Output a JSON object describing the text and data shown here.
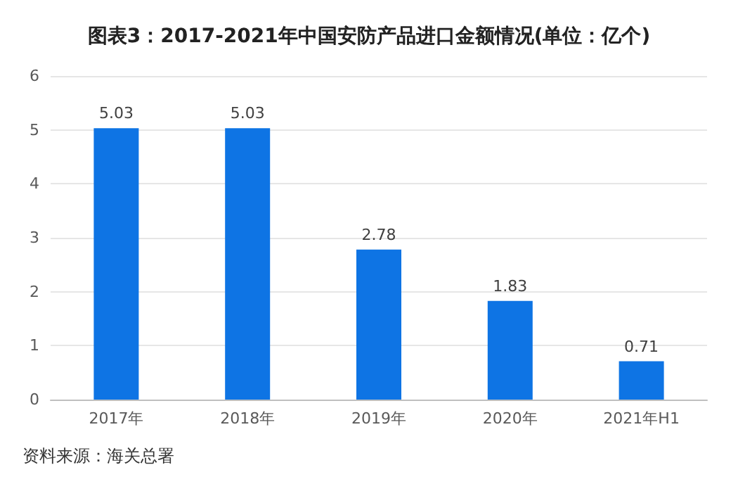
{
  "chart_data": {
    "type": "bar",
    "title": "图表3：2017-2021年中国安防产品进口金额情况(单位：亿个)",
    "categories": [
      "2017年",
      "2018年",
      "2019年",
      "2020年",
      "2021年H1"
    ],
    "values": [
      5.03,
      5.03,
      2.78,
      1.83,
      0.71
    ],
    "color": "#0e74e4",
    "ylim": [
      0,
      6
    ],
    "yticks": [
      0,
      1,
      2,
      3,
      4,
      5,
      6
    ],
    "grid": "y",
    "data_labels": true,
    "annotations": [
      "资料来源：海关总署"
    ]
  }
}
